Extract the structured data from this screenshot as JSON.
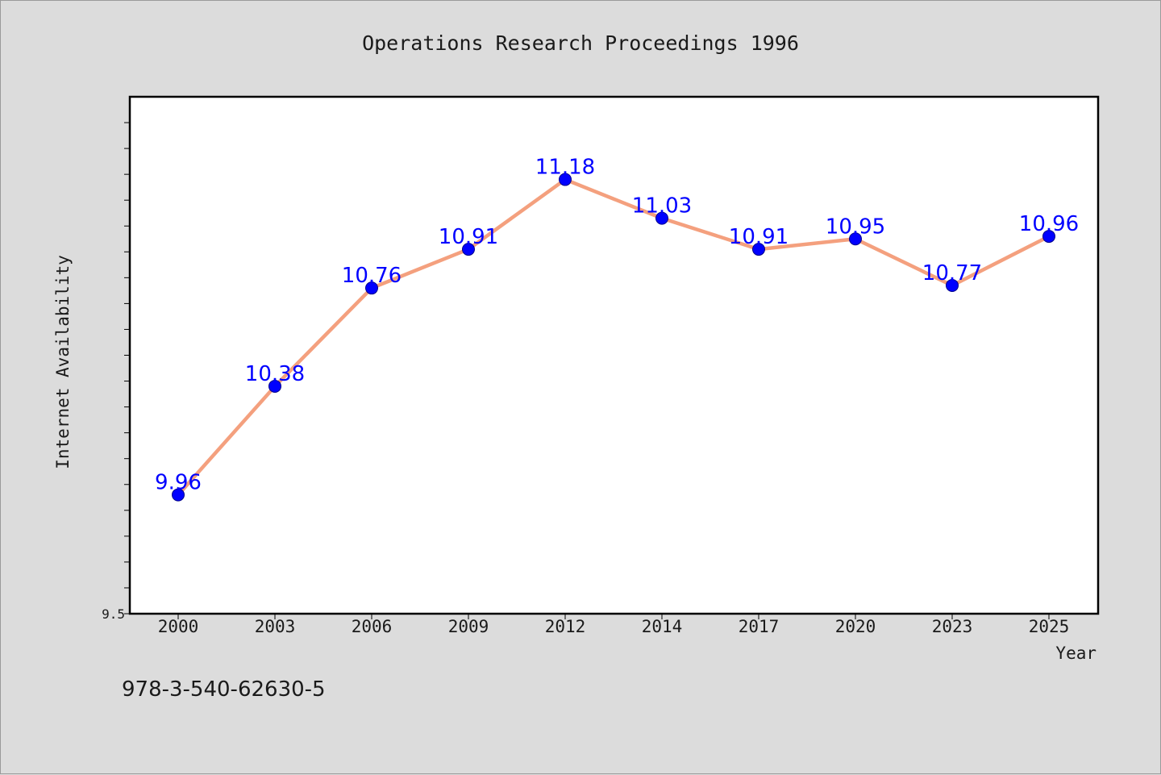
{
  "chart_data": {
    "type": "line",
    "title": "Operations Research Proceedings 1996",
    "xlabel": "Year",
    "ylabel": "Internet Availability",
    "categories": [
      "2000",
      "2003",
      "2006",
      "2009",
      "2012",
      "2014",
      "2017",
      "2020",
      "2023",
      "2025"
    ],
    "series": [
      {
        "values": [
          9.96,
          10.38,
          10.76,
          10.91,
          11.18,
          11.03,
          10.91,
          10.95,
          10.77,
          10.96
        ],
        "data_labels": [
          "9.96",
          "10.38",
          "10.76",
          "10.91",
          "11.18",
          "11.03",
          "10.91",
          "10.95",
          "10.77",
          "10.96"
        ]
      }
    ],
    "ylim": [
      9.5,
      11.5
    ],
    "ytick_labels": [
      {
        "value": 9.5,
        "label": "9.5"
      }
    ],
    "grid": false,
    "colors": {
      "line": "#f4a07e",
      "marker": "#0000ff",
      "label": "#0000ff",
      "background": "#dcdcdc",
      "plot_bg": "#ffffff"
    }
  },
  "footnote": "978-3-540-62630-5"
}
